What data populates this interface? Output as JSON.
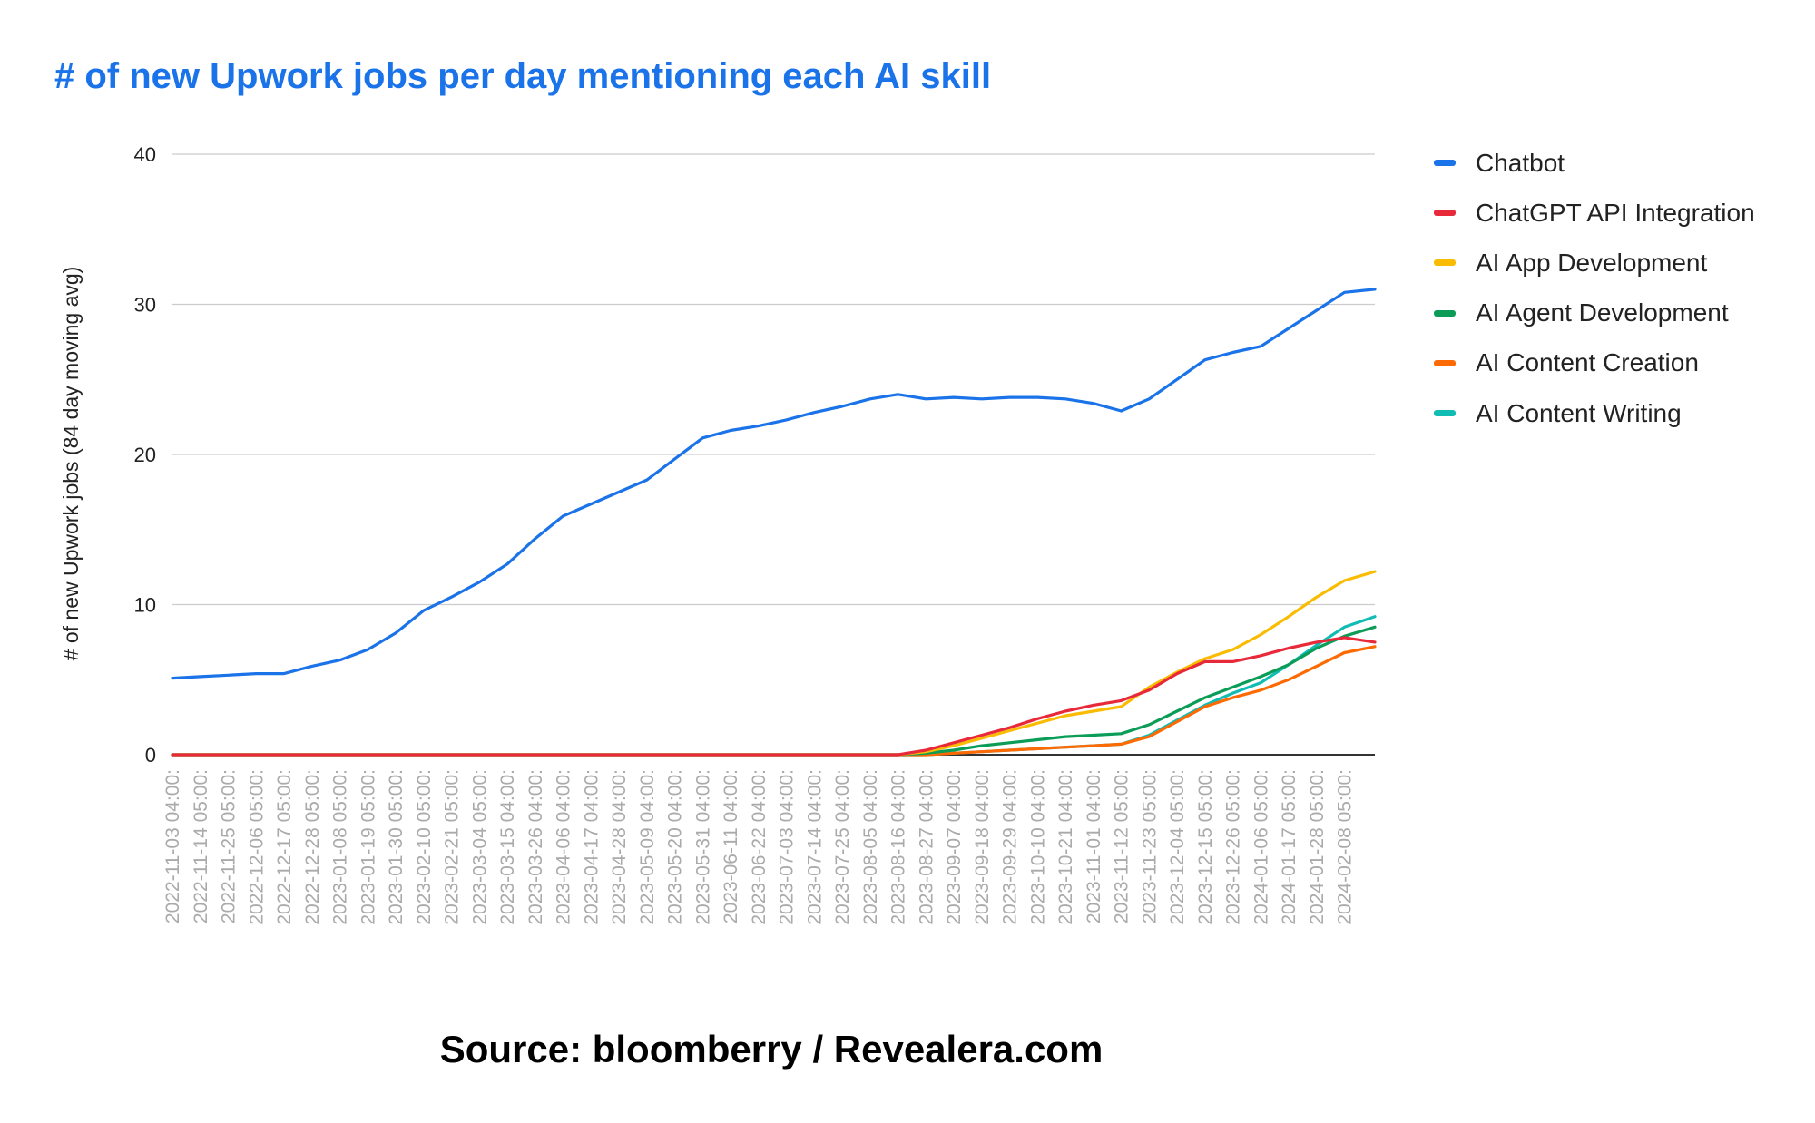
{
  "chart_data": {
    "type": "line",
    "title": "# of new Upwork jobs per day mentioning each AI skill",
    "source": "Source: bloomberry / Revealera.com",
    "xlabel": "",
    "ylabel": "# of new Upwork jobs (84 day moving avg)",
    "ylim": [
      0,
      40
    ],
    "yticks": [
      0,
      10,
      20,
      30,
      40
    ],
    "grid": true,
    "legend_position": "right",
    "x": [
      "2022-11-03 04:00:",
      "2022-11-14 05:00:",
      "2022-11-25 05:00:",
      "2022-12-06 05:00:",
      "2022-12-17 05:00:",
      "2022-12-28 05:00:",
      "2023-01-08 05:00:",
      "2023-01-19 05:00:",
      "2023-01-30 05:00:",
      "2023-02-10 05:00:",
      "2023-02-21 05:00:",
      "2023-03-04 05:00:",
      "2023-03-15 04:00:",
      "2023-03-26 04:00:",
      "2023-04-06 04:00:",
      "2023-04-17 04:00:",
      "2023-04-28 04:00:",
      "2023-05-09 04:00:",
      "2023-05-20 04:00:",
      "2023-05-31 04:00:",
      "2023-06-11 04:00:",
      "2023-06-22 04:00:",
      "2023-07-03 04:00:",
      "2023-07-14 04:00:",
      "2023-07-25 04:00:",
      "2023-08-05 04:00:",
      "2023-08-16 04:00:",
      "2023-08-27 04:00:",
      "2023-09-07 04:00:",
      "2023-09-18 04:00:",
      "2023-09-29 04:00:",
      "2023-10-10 04:00:",
      "2023-10-21 04:00:",
      "2023-11-01 04:00:",
      "2023-11-12 05:00:",
      "2023-11-23 05:00:",
      "2023-12-04 05:00:",
      "2023-12-15 05:00:",
      "2023-12-26 05:00:",
      "2024-01-06 05:00:",
      "2024-01-17 05:00:",
      "2024-01-28 05:00:",
      "2024-02-08 05:00:"
    ],
    "x_end_extra": [
      31.0,
      7.5,
      12.2,
      8.5,
      7.2,
      9.2
    ],
    "series": [
      {
        "name": "Chatbot",
        "color": "#1a73e8",
        "values": [
          5.1,
          5.2,
          5.3,
          5.4,
          5.4,
          5.9,
          6.3,
          7.0,
          8.1,
          9.6,
          10.5,
          11.5,
          12.7,
          14.4,
          15.9,
          16.7,
          17.5,
          18.3,
          19.7,
          21.1,
          21.6,
          21.9,
          22.3,
          22.8,
          23.2,
          23.7,
          24.0,
          23.7,
          23.8,
          23.7,
          23.8,
          23.8,
          23.7,
          23.4,
          22.9,
          23.7,
          25.0,
          26.3,
          26.8,
          27.2,
          28.4,
          29.6,
          30.8
        ]
      },
      {
        "name": "ChatGPT API Integration",
        "color": "#e8293a",
        "values": [
          0,
          0,
          0,
          0,
          0,
          0,
          0,
          0,
          0,
          0,
          0,
          0,
          0,
          0,
          0,
          0,
          0,
          0,
          0,
          0,
          0,
          0,
          0,
          0,
          0,
          0,
          0,
          0.3,
          0.8,
          1.3,
          1.8,
          2.4,
          2.9,
          3.3,
          3.6,
          4.3,
          5.4,
          6.2,
          6.2,
          6.6,
          7.1,
          7.5,
          7.8
        ]
      },
      {
        "name": "AI App Development",
        "color": "#f9bc02",
        "values": [
          0,
          0,
          0,
          0,
          0,
          0,
          0,
          0,
          0,
          0,
          0,
          0,
          0,
          0,
          0,
          0,
          0,
          0,
          0,
          0,
          0,
          0,
          0,
          0,
          0,
          0,
          0,
          0.2,
          0.6,
          1.1,
          1.6,
          2.1,
          2.6,
          2.9,
          3.2,
          4.5,
          5.5,
          6.4,
          7.0,
          8.0,
          9.2,
          10.5,
          11.6
        ]
      },
      {
        "name": "AI Agent Development",
        "color": "#0b9d58",
        "values": [
          0,
          0,
          0,
          0,
          0,
          0,
          0,
          0,
          0,
          0,
          0,
          0,
          0,
          0,
          0,
          0,
          0,
          0,
          0,
          0,
          0,
          0,
          0,
          0,
          0,
          0,
          0,
          0.1,
          0.3,
          0.6,
          0.8,
          1.0,
          1.2,
          1.3,
          1.4,
          2.0,
          2.9,
          3.8,
          4.5,
          5.2,
          6.0,
          7.1,
          7.9
        ]
      },
      {
        "name": "AI Content Creation",
        "color": "#fd6a03",
        "values": [
          0,
          0,
          0,
          0,
          0,
          0,
          0,
          0,
          0,
          0,
          0,
          0,
          0,
          0,
          0,
          0,
          0,
          0,
          0,
          0,
          0,
          0,
          0,
          0,
          0,
          0,
          0,
          0,
          0.1,
          0.2,
          0.3,
          0.4,
          0.5,
          0.6,
          0.7,
          1.2,
          2.2,
          3.2,
          3.8,
          4.3,
          5.0,
          5.9,
          6.8
        ]
      },
      {
        "name": "AI Content Writing",
        "color": "#11bcb5",
        "values": [
          0,
          0,
          0,
          0,
          0,
          0,
          0,
          0,
          0,
          0,
          0,
          0,
          0,
          0,
          0,
          0,
          0,
          0,
          0,
          0,
          0,
          0,
          0,
          0,
          0,
          0,
          0,
          0,
          0.1,
          0.2,
          0.3,
          0.4,
          0.5,
          0.6,
          0.7,
          1.3,
          2.3,
          3.3,
          4.1,
          4.8,
          6.0,
          7.3,
          8.5
        ]
      }
    ]
  }
}
